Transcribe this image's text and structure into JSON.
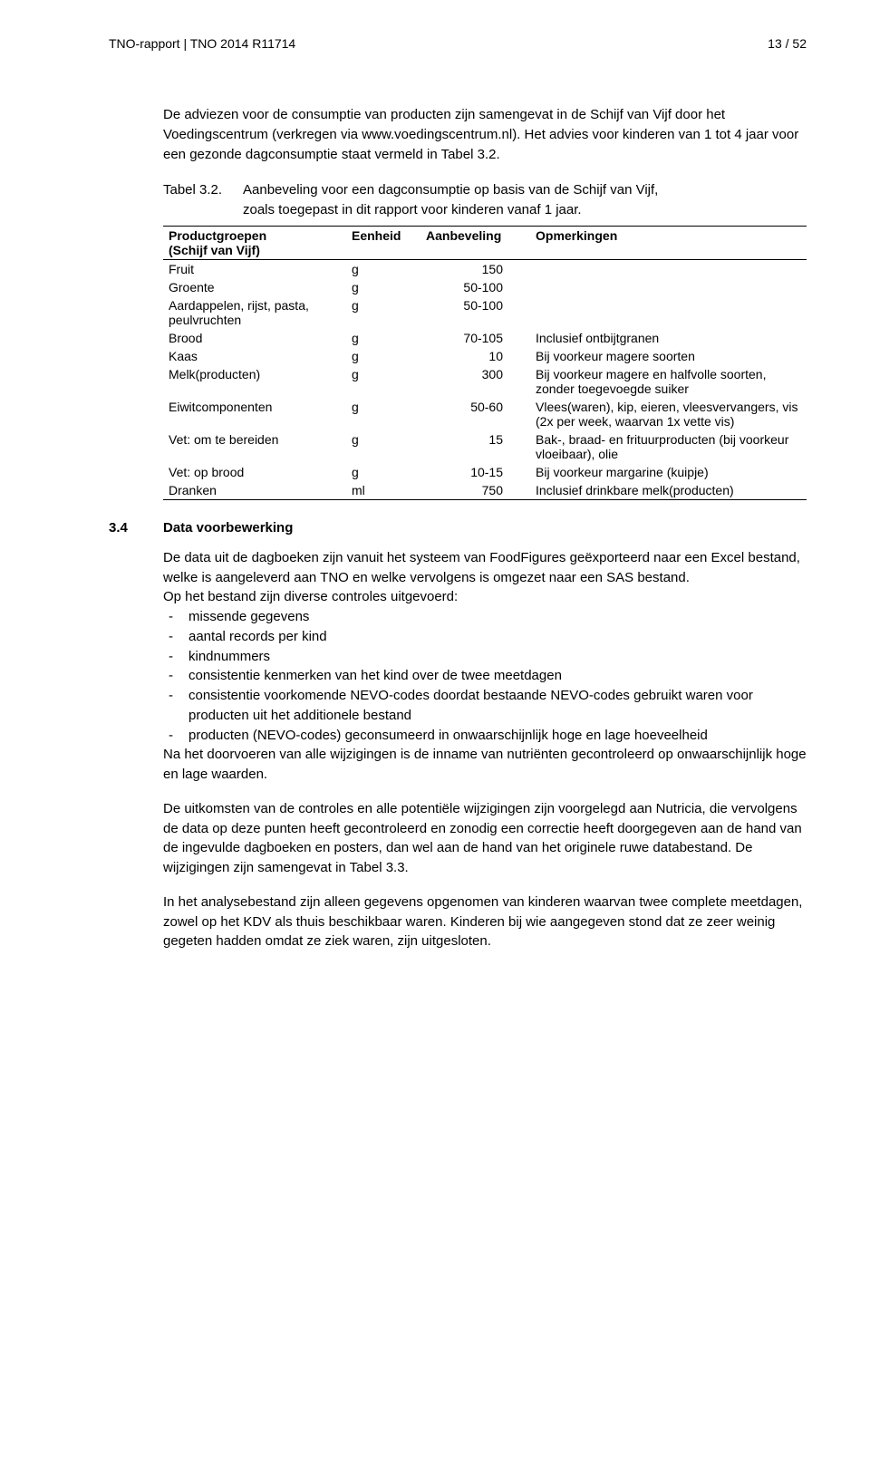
{
  "header": {
    "left": "TNO-rapport | TNO 2014 R11714",
    "right": "13 / 52"
  },
  "intro": "De adviezen voor de consumptie van producten zijn samengevat in de Schijf van Vijf door het Voedingscentrum (verkregen via www.voedingscentrum.nl). Het advies voor kinderen van 1 tot 4 jaar voor een gezonde dagconsumptie staat vermeld in Tabel 3.2.",
  "table": {
    "caption_label": "Tabel 3.2.",
    "caption_text_line1": "Aanbeveling voor een dagconsumptie op basis van de Schijf van Vijf,",
    "caption_text_line2": "zoals toegepast in dit rapport voor kinderen vanaf 1 jaar.",
    "headers": {
      "product_line1": "Productgroepen",
      "product_line2": "(Schijf van Vijf)",
      "unit": "Eenheid",
      "amount": "Aanbeveling",
      "notes": "Opmerkingen"
    },
    "rows": [
      {
        "product": "Fruit",
        "unit": "g",
        "amount": "150",
        "notes": ""
      },
      {
        "product": "Groente",
        "unit": "g",
        "amount": "50-100",
        "notes": ""
      },
      {
        "product": "Aardappelen, rijst, pasta, peulvruchten",
        "unit": "g",
        "amount": "50-100",
        "notes": ""
      },
      {
        "product": "Brood",
        "unit": "g",
        "amount": "70-105",
        "notes": "Inclusief ontbijtgranen"
      },
      {
        "product": "Kaas",
        "unit": "g",
        "amount": "10",
        "notes": "Bij voorkeur magere soorten"
      },
      {
        "product": "Melk(producten)",
        "unit": "g",
        "amount": "300",
        "notes": "Bij voorkeur magere en halfvolle soorten, zonder toegevoegde suiker"
      },
      {
        "product": "Eiwitcomponenten",
        "unit": "g",
        "amount": "50-60",
        "notes": "Vlees(waren), kip, eieren, vleesvervangers, vis (2x per week, waarvan 1x vette vis)"
      },
      {
        "product": "Vet: om te bereiden",
        "unit": "g",
        "amount": "15",
        "notes": "Bak-, braad- en frituurproducten (bij voorkeur vloeibaar), olie"
      },
      {
        "product": "Vet: op brood",
        "unit": "g",
        "amount": "10-15",
        "notes": "Bij voorkeur margarine (kuipje)"
      },
      {
        "product": "Dranken",
        "unit": "ml",
        "amount": "750",
        "notes": "Inclusief drinkbare melk(producten)"
      }
    ]
  },
  "section": {
    "number": "3.4",
    "title": "Data voorbewerking"
  },
  "para1_intro": "De data uit de dagboeken zijn vanuit het systeem van FoodFigures geëxporteerd naar een Excel bestand, welke is aangeleverd aan TNO en welke vervolgens is omgezet naar een SAS bestand.",
  "para1_line2": "Op het bestand zijn diverse controles uitgevoerd:",
  "bullets": [
    "missende gegevens",
    "aantal records per kind",
    "kindnummers",
    "consistentie kenmerken van het kind over de twee meetdagen",
    "consistentie voorkomende NEVO-codes doordat bestaande NEVO-codes gebruikt waren voor producten uit het additionele bestand",
    "producten (NEVO-codes) geconsumeerd in onwaarschijnlijk hoge en lage hoeveelheid"
  ],
  "para1_outro": "Na het doorvoeren van alle wijzigingen is de inname van nutriënten gecontroleerd op onwaarschijnlijk hoge en lage waarden.",
  "para2": "De uitkomsten van de controles en alle potentiële wijzigingen zijn voorgelegd aan Nutricia, die vervolgens de data op deze punten heeft gecontroleerd en zonodig een correctie heeft doorgegeven aan de hand van de ingevulde dagboeken en posters, dan wel aan de hand van het originele ruwe databestand. De wijzigingen zijn samengevat in Tabel 3.3.",
  "para3": "In het analysebestand zijn alleen gegevens opgenomen van kinderen waarvan twee complete meetdagen, zowel op het KDV als thuis beschikbaar waren. Kinderen bij wie aangegeven stond dat ze zeer weinig gegeten hadden omdat ze ziek waren, zijn uitgesloten."
}
